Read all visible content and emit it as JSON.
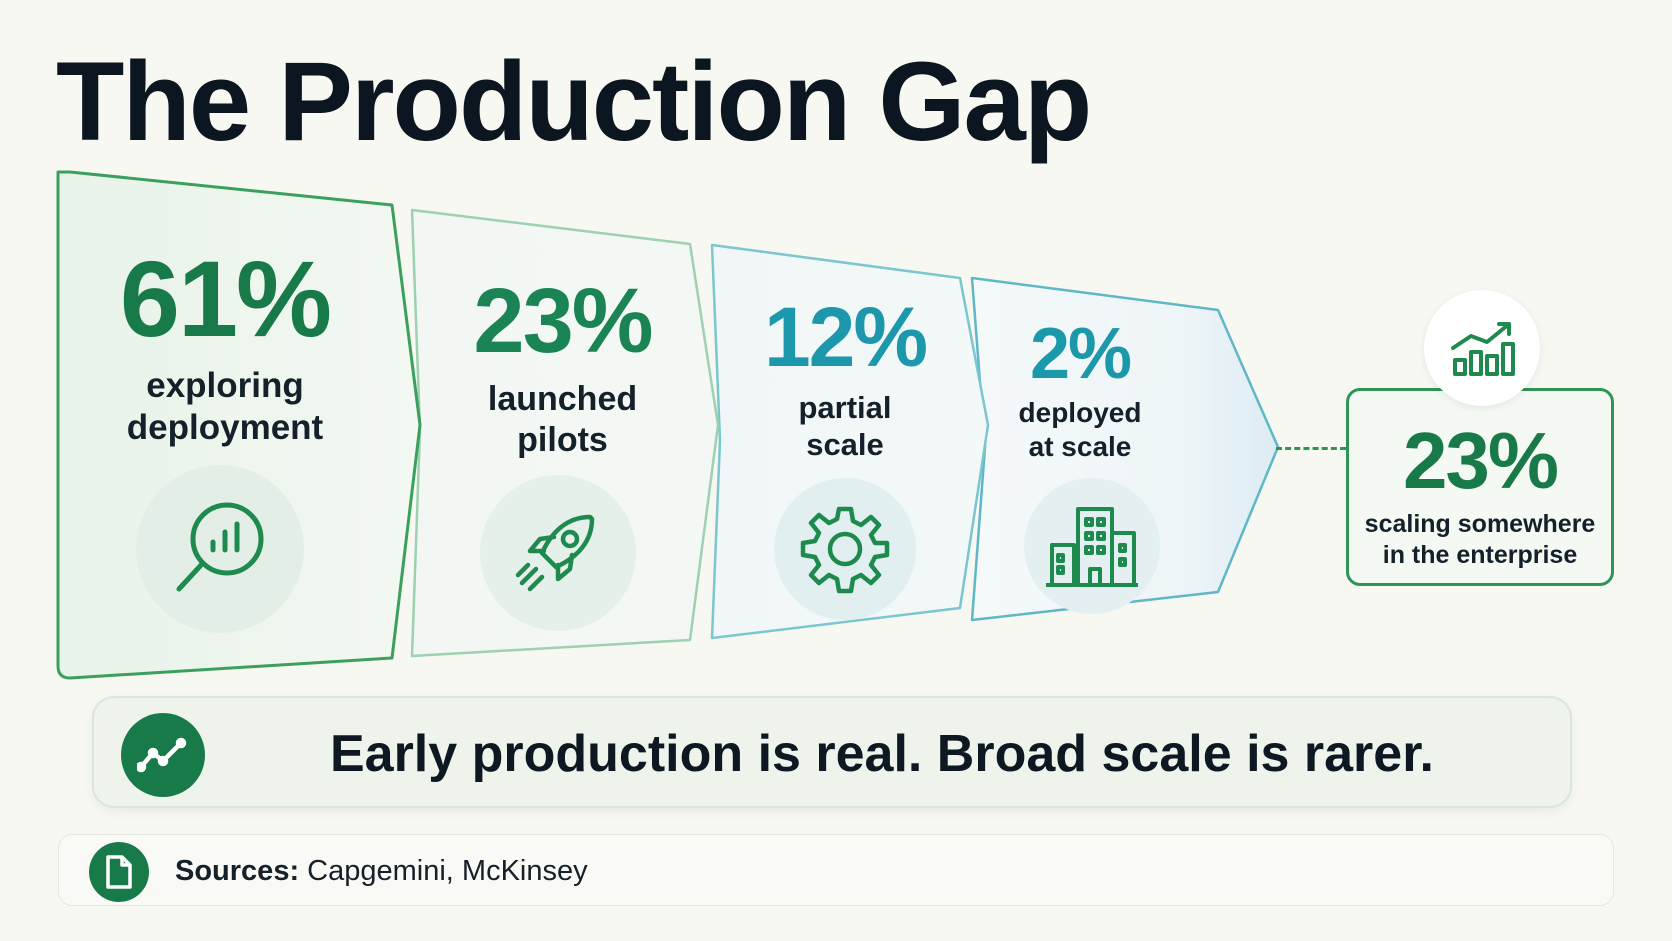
{
  "title": "The Production Gap",
  "stages": [
    {
      "pct": "61%",
      "label_line1": "exploring",
      "label_line2": "deployment",
      "icon": "magnifier-chart-icon",
      "value": 61
    },
    {
      "pct": "23%",
      "label_line1": "launched",
      "label_line2": "pilots",
      "icon": "rocket-icon",
      "value": 23
    },
    {
      "pct": "12%",
      "label_line1": "partial",
      "label_line2": "scale",
      "icon": "gear-icon",
      "value": 12
    },
    {
      "pct": "2%",
      "label_line1": "deployed",
      "label_line2": "at scale",
      "icon": "building-icon",
      "value": 2
    }
  ],
  "result": {
    "pct": "23%",
    "label_line1": "scaling somewhere",
    "label_line2": "in the enterprise",
    "icon": "growth-chart-icon",
    "value": 23
  },
  "callout": {
    "text": "Early production is real. Broad scale is rarer.",
    "icon": "trend-line-icon"
  },
  "sources": {
    "label": "Sources:",
    "text": " Capgemini, McKinsey",
    "icon": "document-icon"
  },
  "colors": {
    "green": "#187a48",
    "teal": "#1d97ab",
    "dark": "#0b1620",
    "background": "#f8f8f3"
  }
}
